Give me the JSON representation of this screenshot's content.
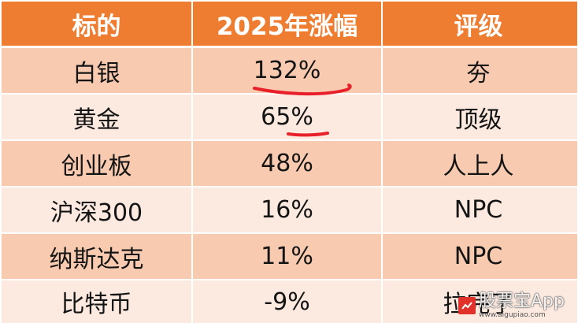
{
  "header": {
    "col1": "标的",
    "col2": "2025年涨幅",
    "col3": "评级"
  },
  "rows": [
    {
      "asset": "白银",
      "gain": "132%",
      "rating": "夯"
    },
    {
      "asset": "黄金",
      "gain": "65%",
      "rating": "顶级"
    },
    {
      "asset": "创业板",
      "gain": "48%",
      "rating": "人上人"
    },
    {
      "asset": "沪深300",
      "gain": "16%",
      "rating": "NPC"
    },
    {
      "asset": "纳斯达克",
      "gain": "11%",
      "rating": "NPC"
    },
    {
      "asset": "比特币",
      "gain": "-9%",
      "rating": "拉完了"
    }
  ],
  "watermark": {
    "text": "股票宝App",
    "subtext": "www.aigupiao.com"
  },
  "colors": {
    "header": "#ee7d31",
    "row_dark": "#f8cbb1",
    "row_light": "#fce9df",
    "underline": "#e8202a"
  }
}
